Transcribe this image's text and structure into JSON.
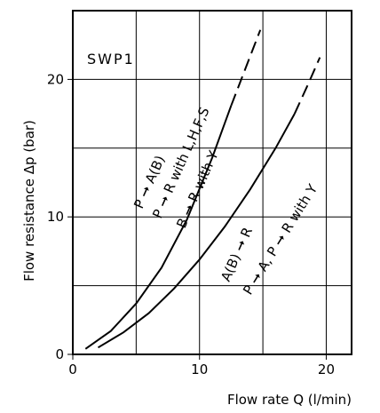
{
  "chart_data": {
    "type": "line",
    "title": "SWP1",
    "xlabel": "Flow rate Q (l/min)",
    "ylabel": "Flow resistance Δp (bar)",
    "xlim": [
      0,
      22
    ],
    "ylim": [
      0,
      25
    ],
    "x_ticks": [
      "0",
      "10",
      "20"
    ],
    "y_ticks": [
      "0",
      "10",
      "20"
    ],
    "grid": true,
    "series": [
      {
        "x": [
          1,
          3,
          5,
          7,
          9,
          11,
          12.5,
          13.5,
          14.8
        ],
        "y": [
          0.4,
          1.7,
          3.7,
          6.3,
          9.8,
          14.3,
          18.1,
          20.5,
          23.6
        ],
        "dashed_from_x": 13.2
      },
      {
        "x": [
          2,
          4,
          6,
          8,
          10,
          12,
          14,
          16,
          17.5,
          18.5,
          19.5
        ],
        "y": [
          0.5,
          1.6,
          3.0,
          4.8,
          6.9,
          9.3,
          12.0,
          15.0,
          17.5,
          19.5,
          21.6
        ],
        "dashed_from_x": 17.5
      }
    ],
    "annotations": [
      {
        "text": "P ➞ A(B)"
      },
      {
        "text": "P ➞ R with L,H,F,S"
      },
      {
        "text": "B ➞ R with Y"
      },
      {
        "text": "A(B) ➞ R"
      },
      {
        "text": "P ➞ A, P ➞ R with Y"
      }
    ]
  }
}
